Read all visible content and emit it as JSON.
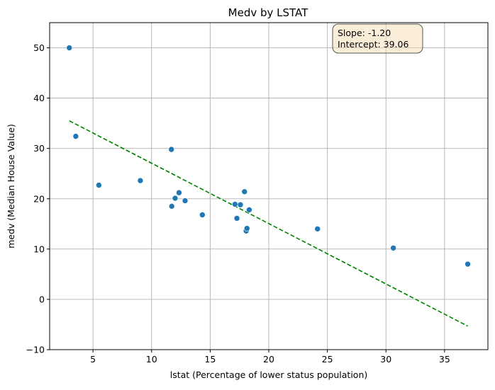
{
  "chart_data": {
    "type": "scatter",
    "title": "Medv by LSTAT",
    "xlabel": "lstat (Percentage of lower status population)",
    "ylabel": "medv (Median House Value)",
    "xlim": [
      1.3,
      38.7
    ],
    "ylim": [
      -10,
      55
    ],
    "xticks": [
      5,
      10,
      15,
      20,
      25,
      30,
      35
    ],
    "yticks": [
      -10,
      0,
      10,
      20,
      30,
      40,
      50
    ],
    "grid": true,
    "points": [
      {
        "x": 2.98,
        "y": 50.0
      },
      {
        "x": 3.53,
        "y": 32.4
      },
      {
        "x": 5.5,
        "y": 22.7
      },
      {
        "x": 9.04,
        "y": 23.6
      },
      {
        "x": 11.69,
        "y": 29.8
      },
      {
        "x": 11.72,
        "y": 18.5
      },
      {
        "x": 12.01,
        "y": 20.1
      },
      {
        "x": 12.34,
        "y": 21.2
      },
      {
        "x": 12.86,
        "y": 19.6
      },
      {
        "x": 14.33,
        "y": 16.8
      },
      {
        "x": 17.12,
        "y": 18.9
      },
      {
        "x": 17.28,
        "y": 16.1
      },
      {
        "x": 17.58,
        "y": 18.8
      },
      {
        "x": 17.93,
        "y": 21.4
      },
      {
        "x": 18.07,
        "y": 13.6
      },
      {
        "x": 18.14,
        "y": 14.1
      },
      {
        "x": 18.33,
        "y": 17.8
      },
      {
        "x": 24.16,
        "y": 14.0
      },
      {
        "x": 30.63,
        "y": 10.2
      },
      {
        "x": 36.98,
        "y": 7.0
      }
    ],
    "point_color": "#1f77b4",
    "regression": {
      "slope": -1.2,
      "intercept": 39.06,
      "x_range": [
        2.98,
        36.98
      ],
      "color": "#008000",
      "style": "dashed"
    },
    "annotation": {
      "lines": [
        "Slope: -1.20",
        "Intercept: 39.06"
      ],
      "placement": "top-right",
      "box_color": "#f5deb3"
    }
  }
}
